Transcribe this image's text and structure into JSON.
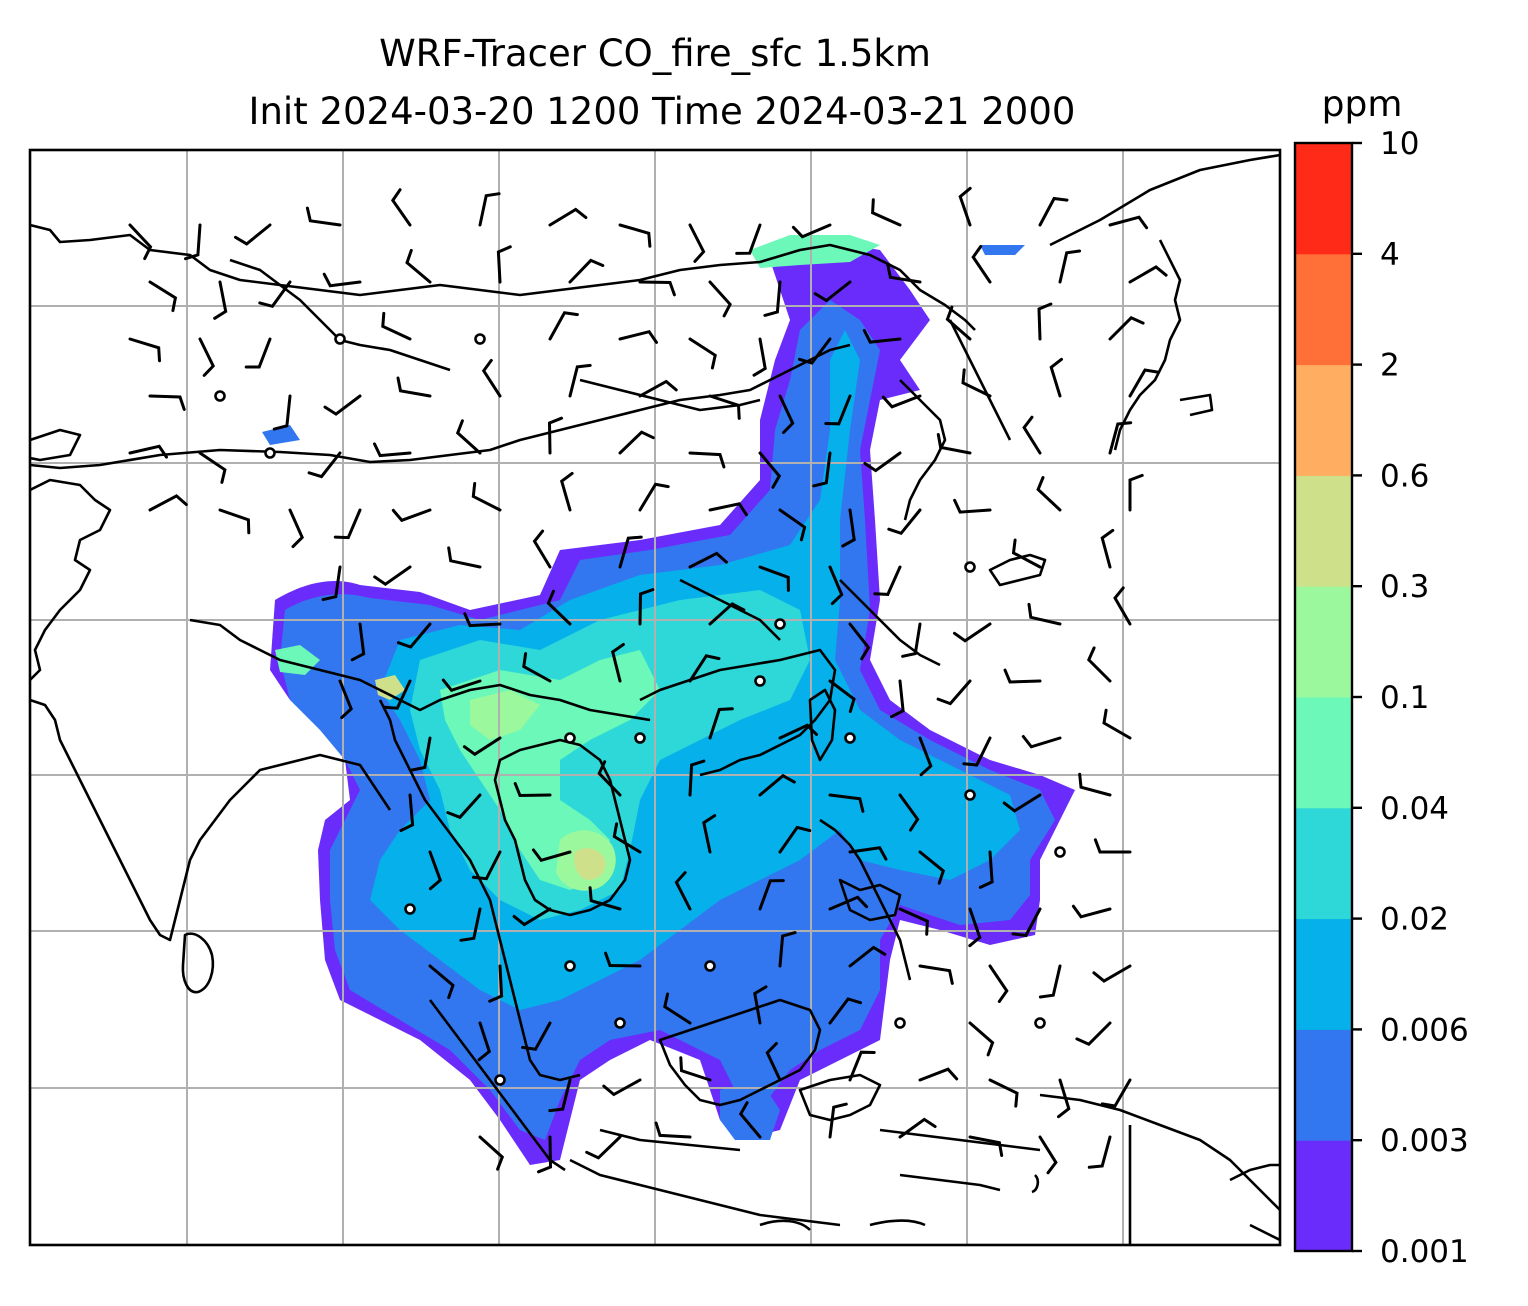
{
  "title": {
    "line1": "WRF-Tracer CO_fire_sfc 1.5km",
    "line2": "Init 2024-03-20 1200 Time 2024-03-21 2000"
  },
  "colorbar": {
    "unit": "ppm",
    "levels": [
      "0.001",
      "0.003",
      "0.006",
      "0.02",
      "0.04",
      "0.1",
      "0.3",
      "0.6",
      "2",
      "4",
      "10"
    ],
    "colors": [
      "#6a2cfa",
      "#3377f0",
      "#06b0ea",
      "#2ed8d8",
      "#6cf8b8",
      "#9cf89c",
      "#cfe08a",
      "#ffad60",
      "#ff7038",
      "#ff2a17"
    ]
  },
  "map": {
    "type": "filled-contour map with wind barbs",
    "variable": "CO_fire_sfc",
    "gridlines": true,
    "land_outline_color": "#000000",
    "gridline_color": "#b0b0b0"
  }
}
